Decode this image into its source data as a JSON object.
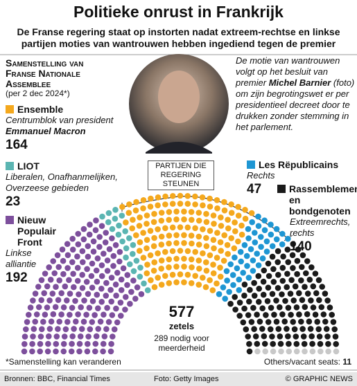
{
  "header": {
    "title": "Politieke onrust in Frankrijk",
    "subtitle": "De Franse regering staat op instorten nadat extreem-rechtse en linkse partijen moties van wantrouwen hebben ingediend tegen de premier"
  },
  "chart_data": {
    "type": "parliament",
    "title": "Samenstelling van Franse Nationale Assemblee",
    "subtitle": "(per 2 dec 2024*)",
    "total": 577,
    "total_label": "zetels",
    "majority_note": "289 nodig voor meerderheid",
    "bracket_label": "PARTIJEN DIE REGERING STEUNEN",
    "series": [
      {
        "name": "Nieuw Populair Front",
        "description": "Linkse alliantie",
        "color": "#7d4f9c",
        "value": 192
      },
      {
        "name": "LIOT",
        "description": "Liberalen, Onafhanmelijken, Overzeese gebieden",
        "color": "#5bb5b2",
        "value": 23
      },
      {
        "name": "Ensemble",
        "description": "Centrumblok van president",
        "leader": "Emmanuel Macron",
        "color": "#f4a81d",
        "value": 164
      },
      {
        "name": "Les Rëpublicains",
        "description": "Rechts",
        "color": "#1e96d3",
        "value": 47
      },
      {
        "name": "Rassemblement en bondgenoten",
        "description": "Extreemrechts, rechts",
        "color": "#1a1a1a",
        "value": 140
      },
      {
        "name": "Others/vacant seats:",
        "color": "#c8c8c8",
        "value": 11
      }
    ]
  },
  "annotation": [
    "De motie van wantrouwen volgt op het besluit van premier",
    "Michel Barnier",
    "(foto) om zijn begrotingswet er per presidentieel decreet door te drukken zonder stemming in het parlement."
  ],
  "footnote": "*Samenstelling kan veranderen",
  "footer": {
    "sources": "Bronnen: BBC, Financial Times",
    "photo": "Foto: Getty Images",
    "credit": "© GRAPHIC NEWS"
  }
}
